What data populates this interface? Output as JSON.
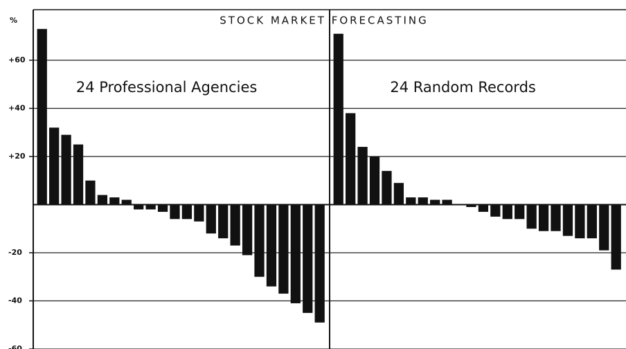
{
  "chart_data": {
    "type": "bar",
    "title": "STOCK MARKET FORECASTING",
    "ylabel": "%",
    "ylim": [
      -60,
      81
    ],
    "yticks": [
      {
        "value": 60,
        "label": "+60"
      },
      {
        "value": 40,
        "label": "+40"
      },
      {
        "value": 20,
        "label": "+20"
      },
      {
        "value": -20,
        "label": "-20"
      },
      {
        "value": -40,
        "label": "-40"
      },
      {
        "value": -60,
        "label": "-60"
      }
    ],
    "grid": true,
    "color": "#111111",
    "series": [
      {
        "name": "24 Professional Agencies",
        "values": [
          73,
          32,
          29,
          25,
          10,
          4,
          3,
          2,
          -2,
          -2,
          -3,
          -6,
          -6,
          -7,
          -12,
          -14,
          -17,
          -21,
          -30,
          -34,
          -37,
          -41,
          -45,
          -49
        ]
      },
      {
        "name": "24 Random Records",
        "values": [
          71,
          38,
          24,
          20,
          14,
          9,
          3,
          3,
          2,
          2,
          0,
          -1,
          -3,
          -5,
          -6,
          -6,
          -10,
          -11,
          -11,
          -13,
          -14,
          -14,
          -19,
          -27
        ]
      }
    ]
  }
}
